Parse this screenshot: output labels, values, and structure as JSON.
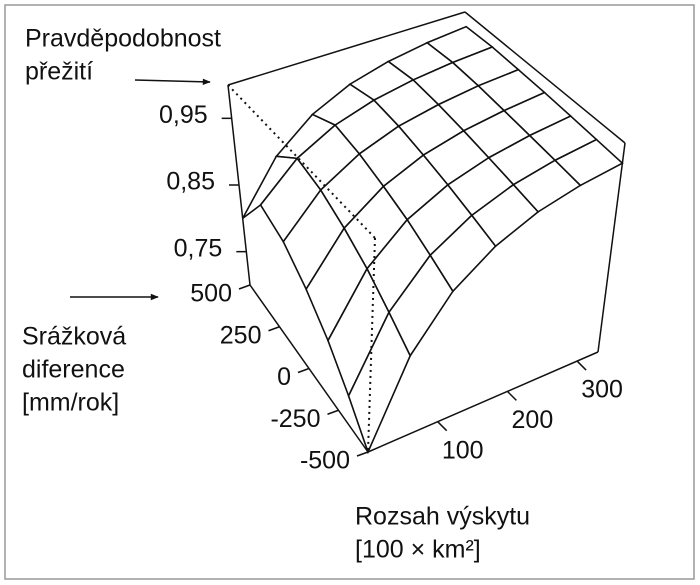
{
  "chart_data": {
    "type": "surface",
    "zlabel": [
      "Pravděpodobnost",
      "přežití"
    ],
    "ylabel": [
      "Srážková",
      "diference",
      "[mm/rok]"
    ],
    "xlabel": [
      "Rozsah výskytu",
      "[100 × km²]"
    ],
    "x": [
      0,
      55,
      110,
      165,
      220,
      275,
      330
    ],
    "y": [
      -500,
      -333,
      -167,
      0,
      167,
      333,
      500
    ],
    "z": [
      [
        0.7,
        0.812,
        0.88,
        0.921,
        0.947,
        0.962,
        0.971
      ],
      [
        0.74,
        0.836,
        0.895,
        0.93,
        0.952,
        0.965,
        0.973
      ],
      [
        0.78,
        0.861,
        0.91,
        0.939,
        0.957,
        0.968,
        0.975
      ],
      [
        0.815,
        0.882,
        0.922,
        0.947,
        0.962,
        0.971,
        0.977
      ],
      [
        0.845,
        0.9,
        0.933,
        0.954,
        0.966,
        0.974,
        0.978
      ],
      [
        0.86,
        0.909,
        0.939,
        0.957,
        0.968,
        0.975,
        0.979
      ],
      [
        0.8,
        0.873,
        0.917,
        0.944,
        0.96,
        0.97,
        0.976
      ]
    ],
    "xlim": [
      0,
      330
    ],
    "xticks": [
      100,
      200,
      300
    ],
    "ylim": [
      -500,
      500
    ],
    "yticks": [
      -500,
      -250,
      0,
      250,
      500
    ],
    "zlim": [
      0.7,
      1.0
    ],
    "zticks": [
      {
        "value": 0.75,
        "label": "0,75"
      },
      {
        "value": 0.85,
        "label": "0,85"
      },
      {
        "value": 0.95,
        "label": "0,95"
      }
    ],
    "color": "#111111"
  }
}
